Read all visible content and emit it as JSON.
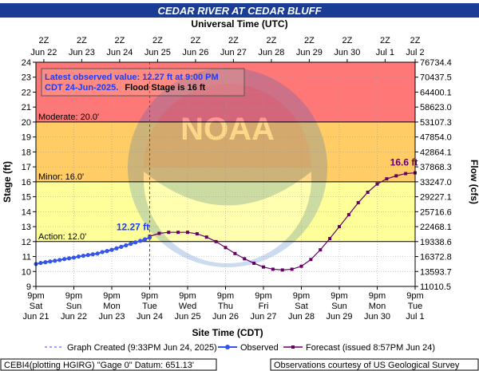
{
  "chart_data": {
    "type": "line",
    "title": "CEDAR RIVER AT CEDAR BLUFF",
    "top_axis_title": "Universal Time (UTC)",
    "bottom_axis_title": "Site Time (CDT)",
    "ylabel": "Stage (ft)",
    "y2label": "Flow (cfs)",
    "ylim": [
      9,
      24
    ],
    "yticks": [
      "9",
      "10",
      "11",
      "12",
      "13",
      "14",
      "15",
      "16",
      "17",
      "18",
      "19",
      "20",
      "21",
      "22",
      "23",
      "24"
    ],
    "flow_ticks": [
      "11010.5",
      "13593.7",
      "16372.8",
      "19338.6",
      "22468.1",
      "25716.6",
      "29227.1",
      "33247.0",
      "37868.3",
      "42864.1",
      "47854.0",
      "53107.3",
      "58623.0",
      "64400.1",
      "70437.5",
      "76734.4"
    ],
    "top_ticks": [
      {
        "line1": "2Z",
        "line2": "Jun 22"
      },
      {
        "line1": "2Z",
        "line2": "Jun 23"
      },
      {
        "line1": "2Z",
        "line2": "Jun 24"
      },
      {
        "line1": "2Z",
        "line2": "Jun 25"
      },
      {
        "line1": "2Z",
        "line2": "Jun 26"
      },
      {
        "line1": "2Z",
        "line2": "Jun 27"
      },
      {
        "line1": "2Z",
        "line2": "Jun 28"
      },
      {
        "line1": "2Z",
        "line2": "Jun 29"
      },
      {
        "line1": "2Z",
        "line2": "Jun 30"
      },
      {
        "line1": "2Z",
        "line2": "Jul 1"
      },
      {
        "line1": "2Z",
        "line2": "Jul 2"
      }
    ],
    "bottom_ticks": [
      {
        "line1": "9pm",
        "line2": "Sat",
        "line3": "Jun 21"
      },
      {
        "line1": "9pm",
        "line2": "Sun",
        "line3": "Jun 22"
      },
      {
        "line1": "9pm",
        "line2": "Mon",
        "line3": "Jun 23"
      },
      {
        "line1": "9pm",
        "line2": "Tue",
        "line3": "Jun 24"
      },
      {
        "line1": "9pm",
        "line2": "Wed",
        "line3": "Jun 25"
      },
      {
        "line1": "9pm",
        "line2": "Thu",
        "line3": "Jun 26"
      },
      {
        "line1": "9pm",
        "line2": "Fri",
        "line3": "Jun 27"
      },
      {
        "line1": "9pm",
        "line2": "Sat",
        "line3": "Jun 28"
      },
      {
        "line1": "9pm",
        "line2": "Sun",
        "line3": "Jun 29"
      },
      {
        "line1": "9pm",
        "line2": "Mon",
        "line3": "Jun 30"
      },
      {
        "line1": "9pm",
        "line2": "Tue",
        "line3": "Jul 1"
      }
    ],
    "stage_bands": [
      {
        "name": "Action",
        "from": 12,
        "to": 16,
        "color": "#ffff99"
      },
      {
        "name": "Minor",
        "from": 16,
        "to": 20,
        "color": "#ffcc66"
      },
      {
        "name": "Moderate",
        "from": 20,
        "to": 24,
        "color": "#ff7777"
      }
    ],
    "stage_lines": [
      {
        "label": "Action: 12.0'",
        "value": 12
      },
      {
        "label": "Minor: 16.0'",
        "value": 16
      },
      {
        "label": "Moderate: 20.0'",
        "value": 20
      }
    ],
    "annotation": {
      "line1": "Latest observed value: 12.27 ft at 9:00 PM",
      "line2": "CDT 24-Jun-2025.",
      "line3": "Flood Stage is 16 ft"
    },
    "observed_label": "12.27 ft",
    "forecast_peak_label": "16.6 ft",
    "created_at": 3,
    "series": [
      {
        "name": "Observed",
        "color": "#3355ee",
        "x": [
          0,
          0.125,
          0.25,
          0.375,
          0.5,
          0.625,
          0.75,
          0.875,
          1,
          1.125,
          1.25,
          1.375,
          1.5,
          1.625,
          1.75,
          1.875,
          2,
          2.125,
          2.25,
          2.375,
          2.5,
          2.625,
          2.75,
          2.875,
          3
        ],
        "values": [
          10.5,
          10.57,
          10.62,
          10.67,
          10.72,
          10.77,
          10.83,
          10.88,
          10.93,
          11.0,
          11.05,
          11.1,
          11.15,
          11.2,
          11.3,
          11.37,
          11.45,
          11.55,
          11.65,
          11.75,
          11.85,
          11.95,
          12.05,
          12.15,
          12.27
        ]
      },
      {
        "name": "Forecast (issued 8:57PM Jun 24)",
        "color": "#660066",
        "x": [
          3,
          3.25,
          3.5,
          3.75,
          4,
          4.25,
          4.5,
          4.75,
          5,
          5.25,
          5.5,
          5.75,
          6,
          6.25,
          6.5,
          6.75,
          7,
          7.25,
          7.5,
          7.75,
          8,
          8.25,
          8.5,
          8.75,
          9,
          9.25,
          9.5,
          9.75,
          10
        ],
        "values": [
          12.35,
          12.55,
          12.62,
          12.62,
          12.62,
          12.52,
          12.3,
          12.0,
          11.6,
          11.2,
          10.85,
          10.55,
          10.3,
          10.15,
          10.1,
          10.15,
          10.35,
          10.8,
          11.45,
          12.2,
          13.0,
          13.8,
          14.6,
          15.3,
          15.85,
          16.2,
          16.4,
          16.55,
          16.6
        ]
      }
    ],
    "legend": {
      "graph_created": "Graph Created (9:33PM Jun 24, 2025)",
      "observed": "Observed",
      "forecast": "Forecast (issued 8:57PM Jun 24)"
    },
    "footer_left": "CEBI4(plotting HGIRG) \"Gage 0\" Datum: 651.13'",
    "footer_right": "Observations courtesy of US Geological Survey"
  }
}
